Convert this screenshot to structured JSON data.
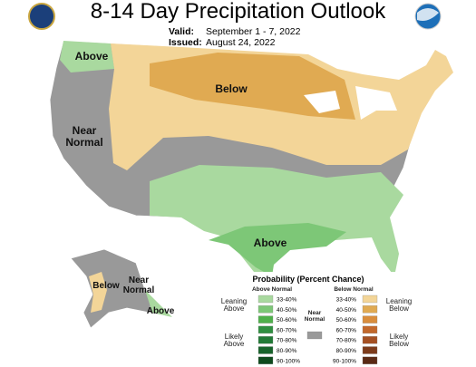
{
  "header": {
    "title": "8-14 Day Precipitation Outlook",
    "valid_label": "Valid:",
    "valid": "September 1 - 7, 2022",
    "issued_label": "Issued:",
    "issued": "August 24, 2022"
  },
  "regions": {
    "nw_above": "Above",
    "below": "Below",
    "near_normal": "Near Normal",
    "south_above": "Above",
    "ak_below": "Below",
    "ak_near_normal": "Near Normal",
    "ak_above": "Above"
  },
  "legend": {
    "title": "Probability (Percent Chance)",
    "above": {
      "heading": "Above Normal",
      "bins": [
        {
          "label": "33-40%",
          "color": "#a9d99f"
        },
        {
          "label": "40-50%",
          "color": "#7dc777"
        },
        {
          "label": "50-60%",
          "color": "#4fb04b"
        },
        {
          "label": "60-70%",
          "color": "#2f8f40"
        },
        {
          "label": "70-80%",
          "color": "#227a36"
        },
        {
          "label": "80-90%",
          "color": "#17632a"
        },
        {
          "label": "90-100%",
          "color": "#0f4a1d"
        }
      ]
    },
    "below": {
      "heading": "Below Normal",
      "bins": [
        {
          "label": "33-40%",
          "color": "#f3d598"
        },
        {
          "label": "40-50%",
          "color": "#e0aa52"
        },
        {
          "label": "50-60%",
          "color": "#d98d3c"
        },
        {
          "label": "60-70%",
          "color": "#c2682b"
        },
        {
          "label": "70-80%",
          "color": "#a45023"
        },
        {
          "label": "80-90%",
          "color": "#7c3b1b"
        },
        {
          "label": "90-100%",
          "color": "#5a2a15"
        }
      ]
    },
    "near": {
      "label": "Near Normal",
      "color": "#999999"
    },
    "leaning_above": "Leaning Above",
    "likely_above": "Likely Above",
    "leaning_below": "Leaning Below",
    "likely_below": "Likely Below"
  }
}
